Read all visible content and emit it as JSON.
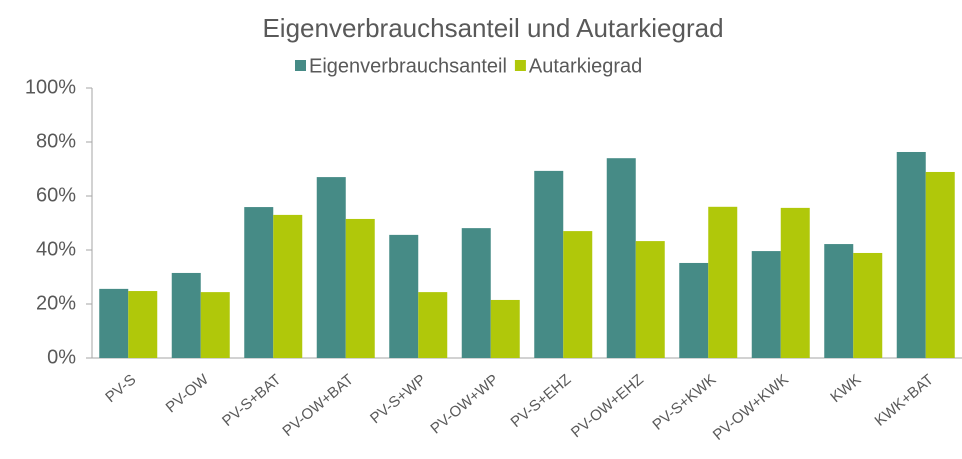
{
  "chart_data": {
    "type": "bar",
    "title": "Eigenverbrauchsanteil und Autarkiegrad",
    "categories": [
      "PV-S",
      "PV-OW",
      "PV-S+BAT",
      "PV-OW+BAT",
      "PV-S+WP",
      "PV-OW+WP",
      "PV-S+EHZ",
      "PV-OW+EHZ",
      "PV-S+KWK",
      "PV-OW+KWK",
      "KWK",
      "KWK+BAT"
    ],
    "series": [
      {
        "name": "Eigenverbrauchsanteil",
        "color": "#468b86",
        "values": [
          25.6,
          31.5,
          55.9,
          67,
          45.6,
          48.1,
          69.3,
          74,
          35.2,
          39.6,
          42.2,
          76.3
        ]
      },
      {
        "name": "Autarkiegrad",
        "color": "#b0c80a",
        "values": [
          24.8,
          24.4,
          53,
          51.5,
          24.4,
          21.5,
          47,
          43.3,
          56,
          55.6,
          38.9,
          68.9
        ]
      }
    ],
    "ylim": [
      0,
      100
    ],
    "yticks": [
      {
        "value": 0,
        "label": "0%"
      },
      {
        "value": 20,
        "label": "20%"
      },
      {
        "value": 40,
        "label": "40%"
      },
      {
        "value": 60,
        "label": "60%"
      },
      {
        "value": 80,
        "label": "80%"
      },
      {
        "value": 100,
        "label": "100%"
      }
    ],
    "grid": false,
    "legend": "top"
  }
}
